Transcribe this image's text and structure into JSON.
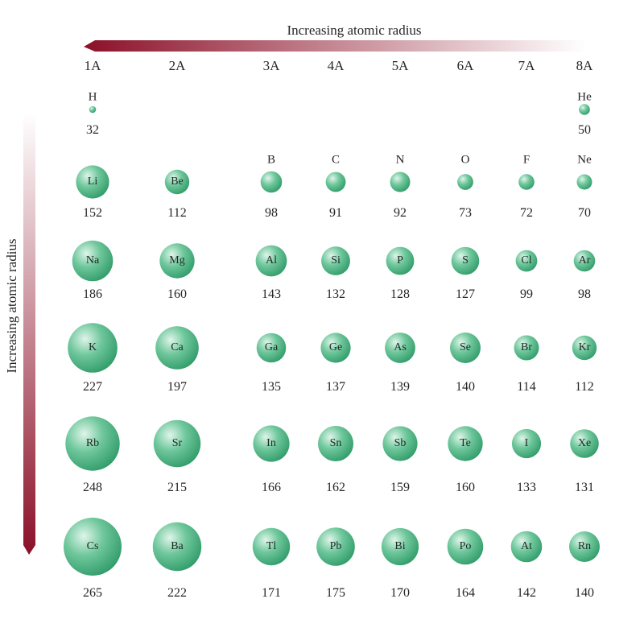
{
  "top_axis": {
    "label": "Increasing atomic radius",
    "color": "#8b1028"
  },
  "left_axis": {
    "label": "Increasing atomic radius",
    "color": "#8b1028"
  },
  "sphere_color": "#3fae7c",
  "groups": [
    "1A",
    "2A",
    "3A",
    "4A",
    "5A",
    "6A",
    "7A",
    "8A"
  ],
  "elements": [
    {
      "symbol": "H",
      "radius": 32,
      "group": 0,
      "row": 0
    },
    {
      "symbol": "He",
      "radius": 50,
      "group": 7,
      "row": 0
    },
    {
      "symbol": "Li",
      "radius": 152,
      "group": 0,
      "row": 1
    },
    {
      "symbol": "Be",
      "radius": 112,
      "group": 1,
      "row": 1
    },
    {
      "symbol": "B",
      "radius": 98,
      "group": 2,
      "row": 1
    },
    {
      "symbol": "C",
      "radius": 91,
      "group": 3,
      "row": 1
    },
    {
      "symbol": "N",
      "radius": 92,
      "group": 4,
      "row": 1
    },
    {
      "symbol": "O",
      "radius": 73,
      "group": 5,
      "row": 1
    },
    {
      "symbol": "F",
      "radius": 72,
      "group": 6,
      "row": 1
    },
    {
      "symbol": "Ne",
      "radius": 70,
      "group": 7,
      "row": 1
    },
    {
      "symbol": "Na",
      "radius": 186,
      "group": 0,
      "row": 2
    },
    {
      "symbol": "Mg",
      "radius": 160,
      "group": 1,
      "row": 2
    },
    {
      "symbol": "Al",
      "radius": 143,
      "group": 2,
      "row": 2
    },
    {
      "symbol": "Si",
      "radius": 132,
      "group": 3,
      "row": 2
    },
    {
      "symbol": "P",
      "radius": 128,
      "group": 4,
      "row": 2
    },
    {
      "symbol": "S",
      "radius": 127,
      "group": 5,
      "row": 2
    },
    {
      "symbol": "Cl",
      "radius": 99,
      "group": 6,
      "row": 2
    },
    {
      "symbol": "Ar",
      "radius": 98,
      "group": 7,
      "row": 2
    },
    {
      "symbol": "K",
      "radius": 227,
      "group": 0,
      "row": 3
    },
    {
      "symbol": "Ca",
      "radius": 197,
      "group": 1,
      "row": 3
    },
    {
      "symbol": "Ga",
      "radius": 135,
      "group": 2,
      "row": 3
    },
    {
      "symbol": "Ge",
      "radius": 137,
      "group": 3,
      "row": 3
    },
    {
      "symbol": "As",
      "radius": 139,
      "group": 4,
      "row": 3
    },
    {
      "symbol": "Se",
      "radius": 140,
      "group": 5,
      "row": 3
    },
    {
      "symbol": "Br",
      "radius": 114,
      "group": 6,
      "row": 3
    },
    {
      "symbol": "Kr",
      "radius": 112,
      "group": 7,
      "row": 3
    },
    {
      "symbol": "Rb",
      "radius": 248,
      "group": 0,
      "row": 4
    },
    {
      "symbol": "Sr",
      "radius": 215,
      "group": 1,
      "row": 4
    },
    {
      "symbol": "In",
      "radius": 166,
      "group": 2,
      "row": 4
    },
    {
      "symbol": "Sn",
      "radius": 162,
      "group": 3,
      "row": 4
    },
    {
      "symbol": "Sb",
      "radius": 159,
      "group": 4,
      "row": 4
    },
    {
      "symbol": "Te",
      "radius": 160,
      "group": 5,
      "row": 4
    },
    {
      "symbol": "I",
      "radius": 133,
      "group": 6,
      "row": 4
    },
    {
      "symbol": "Xe",
      "radius": 131,
      "group": 7,
      "row": 4
    },
    {
      "symbol": "Cs",
      "radius": 265,
      "group": 0,
      "row": 5
    },
    {
      "symbol": "Ba",
      "radius": 222,
      "group": 1,
      "row": 5
    },
    {
      "symbol": "Tl",
      "radius": 171,
      "group": 2,
      "row": 5
    },
    {
      "symbol": "Pb",
      "radius": 175,
      "group": 3,
      "row": 5
    },
    {
      "symbol": "Bi",
      "radius": 170,
      "group": 4,
      "row": 5
    },
    {
      "symbol": "Po",
      "radius": 164,
      "group": 5,
      "row": 5
    },
    {
      "symbol": "At",
      "radius": 142,
      "group": 6,
      "row": 5
    },
    {
      "symbol": "Rn",
      "radius": 140,
      "group": 7,
      "row": 5
    }
  ]
}
